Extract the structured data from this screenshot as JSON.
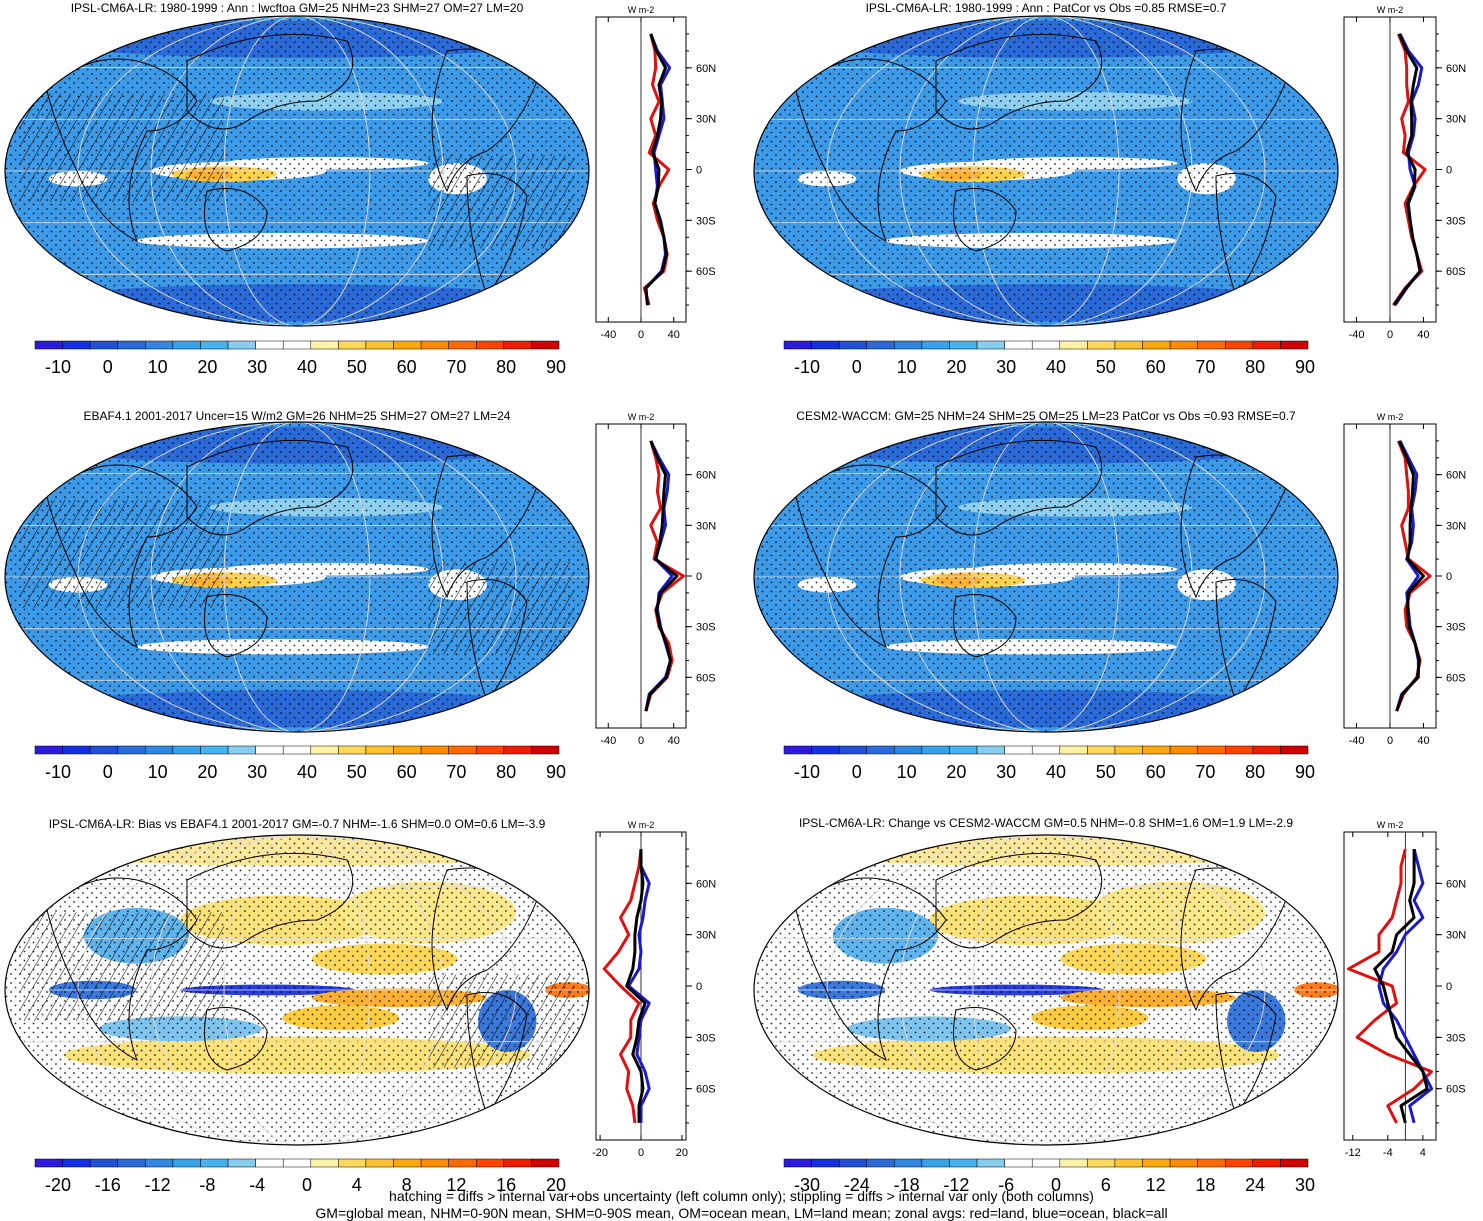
{
  "footer": {
    "line1": "hatching = diffs > internal var+obs uncertainty (left column only); stippling = diffs > internal var only (both columns)",
    "line2": "GM=global mean, NHM=0-90N mean, SHM=0-90S mean, OM=ocean mean, LM=land mean; zonal avgs: red=land, blue=ocean, black=all"
  },
  "colors": {
    "land": "#e01010",
    "ocean": "#1a1acc",
    "all": "#000000"
  },
  "chart_data": [
    {
      "type": "heatmap",
      "title": "IPSL-CM6A-LR: 1980-1999 : Ann : lwcftoa GM=25 NHM=23 SHM=27 OM=27 LM=20",
      "colorbar_labels": [
        "-10",
        "0",
        "10",
        "20",
        "30",
        "40",
        "50",
        "60",
        "70",
        "80",
        "90"
      ],
      "palette": "absolute",
      "overlays": [
        "hatching",
        "stippling"
      ],
      "zonal_mean": {
        "unit": "W m-2",
        "xticks": [
          "-40",
          "0",
          "40"
        ],
        "xlim": [
          -55,
          55
        ],
        "yticks": [
          "60N",
          "30N",
          "0",
          "30S",
          "60S"
        ],
        "ylim": [
          -90,
          90
        ],
        "lat": [
          -80,
          -70,
          -60,
          -50,
          -40,
          -30,
          -20,
          -10,
          0,
          10,
          20,
          30,
          40,
          50,
          60,
          70,
          80
        ],
        "land": [
          10,
          4,
          28,
          32,
          28,
          20,
          15,
          22,
          34,
          10,
          18,
          12,
          22,
          14,
          18,
          17,
          12
        ],
        "ocean": [
          8,
          6,
          25,
          30,
          28,
          24,
          17,
          20,
          18,
          16,
          22,
          28,
          26,
          24,
          35,
          20,
          12
        ],
        "all": [
          8,
          6,
          26,
          31,
          28,
          23,
          17,
          21,
          22,
          14,
          20,
          24,
          25,
          22,
          30,
          19,
          12
        ]
      }
    },
    {
      "type": "heatmap",
      "title": "IPSL-CM6A-LR: 1980-1999 : Ann : PatCor vs Obs =0.85 RMSE=0.7",
      "colorbar_labels": [
        "-10",
        "0",
        "10",
        "20",
        "30",
        "40",
        "50",
        "60",
        "70",
        "80",
        "90"
      ],
      "palette": "absolute",
      "overlays": [
        "stippling"
      ],
      "zonal_mean": {
        "unit": "W m-2",
        "xticks": [
          "-40",
          "0",
          "40"
        ],
        "xlim": [
          -55,
          55
        ],
        "yticks": [
          "60N",
          "30N",
          "0",
          "30S",
          "60S"
        ],
        "ylim": [
          -90,
          90
        ],
        "lat": [
          -80,
          -70,
          -60,
          -50,
          -40,
          -30,
          -20,
          -10,
          0,
          10,
          20,
          30,
          40,
          50,
          60,
          70,
          80
        ],
        "land": [
          4,
          18,
          38,
          32,
          26,
          22,
          18,
          28,
          42,
          16,
          18,
          14,
          22,
          20,
          20,
          18,
          10
        ],
        "ocean": [
          6,
          20,
          36,
          32,
          27,
          24,
          22,
          30,
          24,
          22,
          28,
          30,
          26,
          34,
          38,
          22,
          12
        ],
        "all": [
          5,
          19,
          36,
          32,
          27,
          24,
          21,
          29,
          30,
          20,
          26,
          26,
          25,
          28,
          32,
          20,
          11
        ]
      }
    },
    {
      "type": "heatmap",
      "title": "EBAF4.1 2001-2017 Uncer=15 W/m2 GM=26 NHM=25 SHM=27 OM=27 LM=24",
      "colorbar_labels": [
        "-10",
        "0",
        "10",
        "20",
        "30",
        "40",
        "50",
        "60",
        "70",
        "80",
        "90"
      ],
      "palette": "absolute",
      "overlays": [
        "hatching",
        "stippling"
      ],
      "zonal_mean": {
        "unit": "W m-2",
        "xticks": [
          "-40",
          "0",
          "40"
        ],
        "xlim": [
          -55,
          55
        ],
        "yticks": [
          "60N",
          "30N",
          "0",
          "30S",
          "60S"
        ],
        "ylim": [
          -90,
          90
        ],
        "lat": [
          -80,
          -70,
          -60,
          -50,
          -40,
          -30,
          -20,
          -10,
          0,
          10,
          20,
          30,
          40,
          50,
          60,
          70,
          80
        ],
        "land": [
          6,
          12,
          32,
          38,
          34,
          22,
          18,
          26,
          52,
          16,
          20,
          12,
          24,
          20,
          22,
          18,
          12
        ],
        "ocean": [
          6,
          10,
          30,
          36,
          30,
          24,
          20,
          22,
          38,
          18,
          24,
          30,
          28,
          32,
          34,
          22,
          12
        ],
        "all": [
          6,
          11,
          31,
          36,
          31,
          23,
          19,
          24,
          44,
          18,
          23,
          26,
          27,
          28,
          30,
          20,
          12
        ]
      }
    },
    {
      "type": "heatmap",
      "title": "CESM2-WACCM: GM=25 NHM=24 SHM=25 OM=25 LM=23 PatCor vs Obs =0.93 RMSE=0.7",
      "colorbar_labels": [
        "-10",
        "0",
        "10",
        "20",
        "30",
        "40",
        "50",
        "60",
        "70",
        "80",
        "90"
      ],
      "palette": "absolute",
      "overlays": [
        "stippling"
      ],
      "zonal_mean": {
        "unit": "W m-2",
        "xticks": [
          "-40",
          "0",
          "40"
        ],
        "xlim": [
          -55,
          55
        ],
        "yticks": [
          "60N",
          "30N",
          "0",
          "30S",
          "60S"
        ],
        "ylim": [
          -90,
          90
        ],
        "lat": [
          -80,
          -70,
          -60,
          -50,
          -40,
          -30,
          -20,
          -10,
          0,
          10,
          20,
          30,
          40,
          50,
          60,
          70,
          80
        ],
        "land": [
          8,
          16,
          32,
          36,
          30,
          20,
          18,
          24,
          48,
          22,
          18,
          14,
          22,
          22,
          20,
          18,
          10
        ],
        "ocean": [
          8,
          14,
          34,
          34,
          30,
          24,
          22,
          20,
          34,
          20,
          26,
          28,
          26,
          30,
          32,
          22,
          12
        ],
        "all": [
          8,
          15,
          33,
          35,
          30,
          23,
          21,
          22,
          40,
          21,
          24,
          24,
          25,
          27,
          28,
          20,
          11
        ]
      }
    },
    {
      "type": "heatmap",
      "title": "IPSL-CM6A-LR: Bias vs EBAF4.1 2001-2017 GM=-0.7 NHM=-1.6 SHM=0.0 OM=0.6 LM=-3.9",
      "colorbar_labels": [
        "-20",
        "-16",
        "-12",
        "-8",
        "-4",
        "0",
        "4",
        "8",
        "12",
        "16",
        "20"
      ],
      "palette": "difference",
      "overlays": [
        "hatching",
        "stippling"
      ],
      "zonal_mean": {
        "unit": "W m-2",
        "xticks": [
          "-20",
          "0",
          "20"
        ],
        "xlim": [
          -22,
          22
        ],
        "yticks": [
          "60N",
          "30N",
          "0",
          "30S",
          "60S"
        ],
        "ylim": [
          -90,
          90
        ],
        "lat": [
          -80,
          -70,
          -60,
          -50,
          -40,
          -30,
          -20,
          -10,
          0,
          10,
          20,
          30,
          40,
          50,
          60,
          70,
          80
        ],
        "land": [
          -3,
          -4,
          -7,
          -6,
          -10,
          -5,
          -5,
          -1,
          -10,
          -18,
          -11,
          -6,
          -10,
          -5,
          -3,
          -1,
          0
        ],
        "ocean": [
          0,
          0,
          4,
          2,
          -2,
          -1,
          0,
          4,
          -6,
          -1,
          0,
          -1,
          1,
          2,
          4,
          0,
          0
        ],
        "all": [
          -1,
          -1,
          1,
          0,
          -4,
          -2,
          -1,
          2,
          -7,
          -4,
          -3,
          -3,
          -2,
          0,
          1,
          0,
          0
        ]
      }
    },
    {
      "type": "heatmap",
      "title": "IPSL-CM6A-LR: Change vs CESM2-WACCM GM=0.5 NHM=-0.8 SHM=1.6 OM=1.9 LM=-2.9",
      "colorbar_labels": [
        "-30",
        "-24",
        "-18",
        "-12",
        "-6",
        "0",
        "6",
        "12",
        "18",
        "24",
        "30"
      ],
      "palette": "difference",
      "overlays": [
        "stippling"
      ],
      "zonal_mean": {
        "unit": "W m-2",
        "xticks": [
          "-12",
          "-4",
          "4"
        ],
        "xlim": [
          -14,
          7
        ],
        "yticks": [
          "60N",
          "30N",
          "0",
          "30S",
          "60S"
        ],
        "ylim": [
          -90,
          90
        ],
        "lat": [
          -80,
          -70,
          -60,
          -50,
          -40,
          -30,
          -20,
          -10,
          0,
          10,
          20,
          30,
          40,
          50,
          60,
          70,
          80
        ],
        "land": [
          -2,
          -4,
          2,
          6,
          -4,
          -11,
          -7,
          -2,
          -3,
          -13,
          -6,
          -6,
          -3,
          -2,
          -1,
          -1,
          0
        ],
        "ocean": [
          2,
          1,
          6,
          4,
          2,
          0,
          -2,
          -5,
          -6,
          -5,
          -2,
          0,
          4,
          2,
          4,
          3,
          2
        ],
        "all": [
          0,
          -1,
          5,
          4,
          1,
          -2,
          -3,
          -4,
          -5,
          -7,
          -3,
          -2,
          2,
          1,
          2,
          2,
          2
        ]
      }
    }
  ]
}
